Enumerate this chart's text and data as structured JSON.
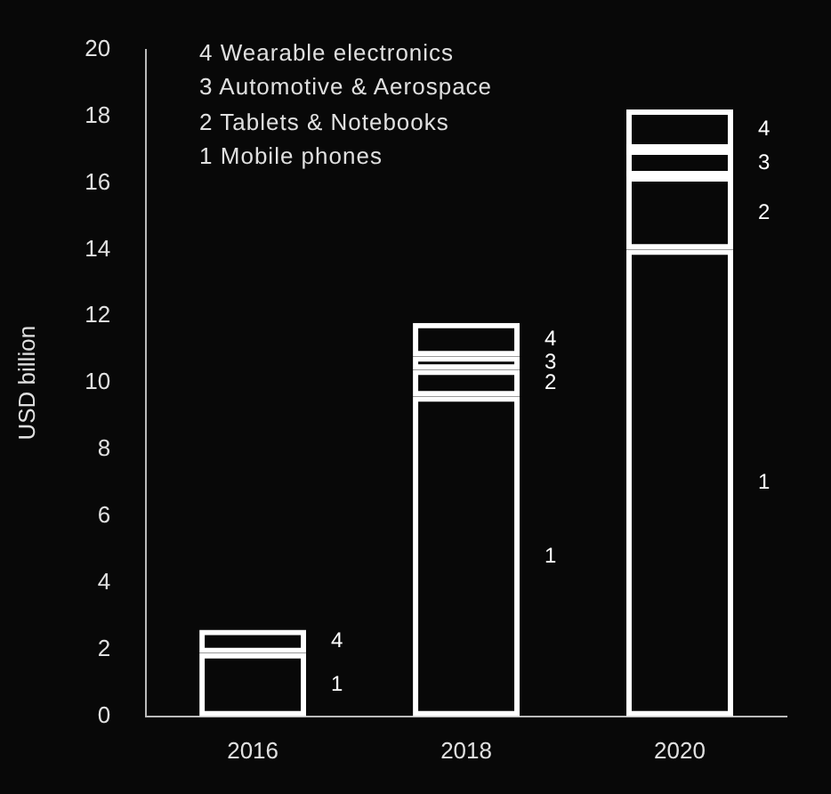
{
  "chart_data": {
    "type": "bar",
    "stacked": true,
    "ylabel": "USD billion",
    "categories": [
      "2016",
      "2018",
      "2020"
    ],
    "series": [
      {
        "name": "1",
        "color": "#ffffff",
        "values": [
          1.9,
          9.6,
          14.0
        ]
      },
      {
        "name": "2",
        "color": "#ffffff",
        "values": [
          null,
          0.8,
          2.2
        ]
      },
      {
        "name": "3",
        "color": "#ffffff",
        "values": [
          null,
          0.4,
          0.8
        ]
      },
      {
        "name": "4",
        "color": "#ffffff",
        "values": [
          0.7,
          1.0,
          1.2
        ]
      }
    ],
    "ylim": [
      0,
      20
    ],
    "yticks": [
      0,
      2,
      4,
      6,
      8,
      10,
      12,
      14,
      16,
      18,
      20
    ],
    "grid": false,
    "legend": "bottom left",
    "annotations": [
      "4 Wearable electronics",
      "3 Automotive & Aerospace",
      "2 Tablets & Notebooks",
      "1 Mobile phones"
    ]
  }
}
